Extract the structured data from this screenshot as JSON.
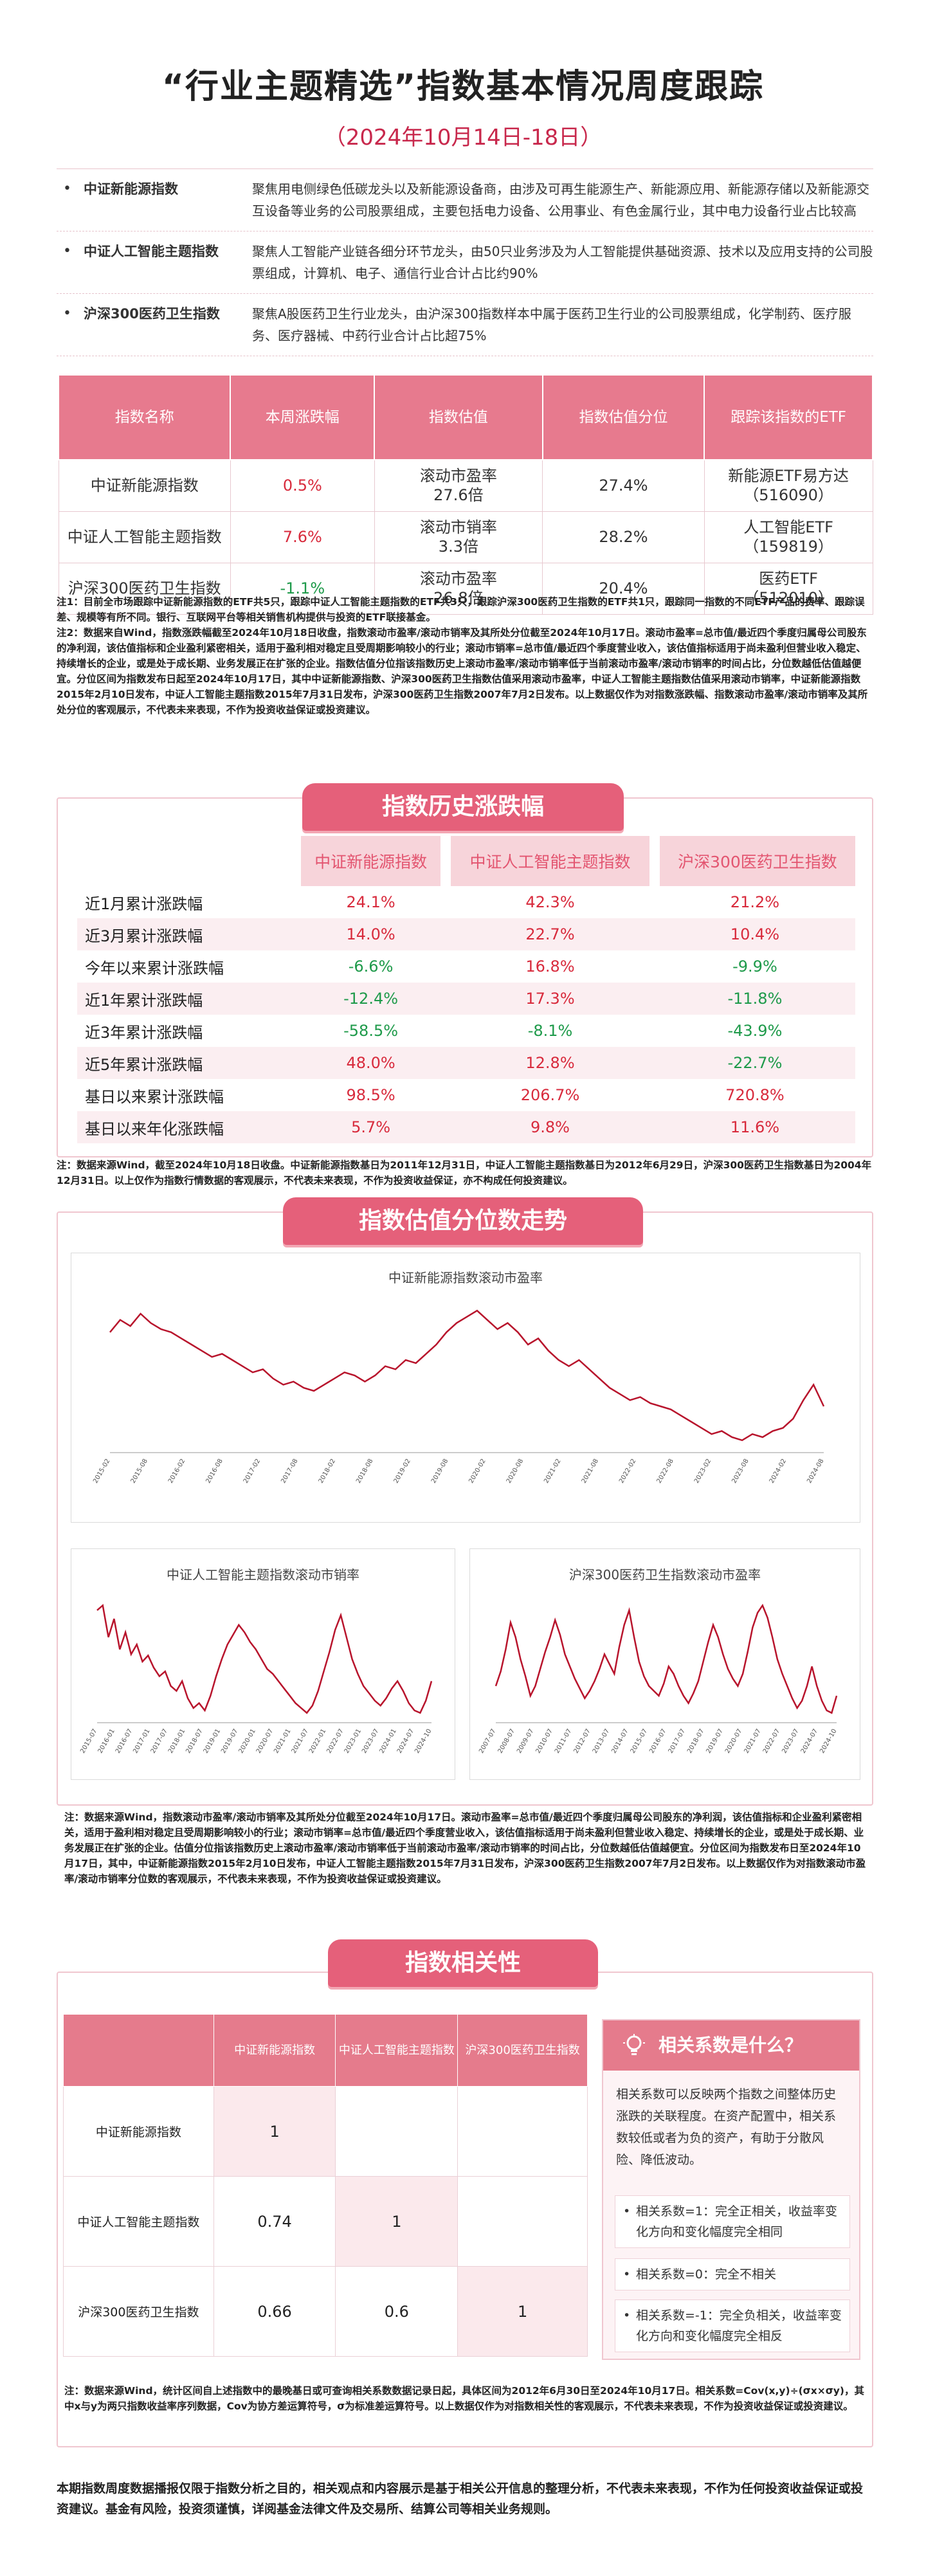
{
  "header": {
    "title": "“行业主题精选”指数基本情况周度跟踪",
    "subtitle": "（2024年10月14日-18日）"
  },
  "intro": [
    {
      "bullet": "•",
      "name": "中证新能源指数",
      "desc": "聚焦用电侧绿色低碳龙头以及新能源设备商，由涉及可再生能源生产、新能源应用、新能源存储以及新能源交互设备等业务的公司股票组成，主要包括电力设备、公用事业、有色金属行业，其中电力设备行业占比较高"
    },
    {
      "bullet": "•",
      "name": "中证人工智能主题指数",
      "desc": "聚焦人工智能产业链各细分环节龙头，由50只业务涉及为人工智能提供基础资源、技术以及应用支持的公司股票组成，计算机、电子、通信行业合计占比约90%"
    },
    {
      "bullet": "•",
      "name": "沪深300医药卫生指数",
      "desc": "聚焦A股医药卫生行业龙头，由沪深300指数样本中属于医药卫生行业的公司股票组成，化学制药、医疗服务、医疗器械、中药行业合计占比超75%"
    }
  ],
  "main_table": {
    "headers": [
      "指数名称",
      "本周涨跌幅",
      "指数估值",
      "指数估值分位",
      "跟踪该指数的ETF"
    ],
    "rows": [
      {
        "name": "中证新能源指数",
        "ret": "0.5%",
        "val1": "滚动市盈率",
        "val2": "27.6倍",
        "pct": "27.4%",
        "etf1": "新能源ETF易方达",
        "etf2": "（516090）",
        "sign": "pos"
      },
      {
        "name": "中证人工智能主题指数",
        "ret": "7.6%",
        "val1": "滚动市销率",
        "val2": "3.3倍",
        "pct": "28.2%",
        "etf1": "人工智能ETF",
        "etf2": "（159819）",
        "sign": "pos"
      },
      {
        "name": "沪深300医药卫生指数",
        "ret": "-1.1%",
        "val1": "滚动市盈率",
        "val2": "26.8倍",
        "pct": "20.4%",
        "etf1": "医药ETF",
        "etf2": "（512010）",
        "sign": "neg"
      }
    ]
  },
  "note1": "注1：目前全市场跟踪中证新能源指数的ETF共5只，跟踪中证人工智能主题指数的ETF共3只，跟踪沪深300医药卫生指数的ETF共1只，跟踪同一指数的不同ETF产品的费率、跟踪误差、规模等有所不同。银行、互联网平台等相关销售机构提供与投资的ETF联接基金。\n注2：数据来自Wind，指数涨跌幅截至2024年10月18日收盘，指数滚动市盈率/滚动市销率及其所处分位截至2024年10月17日。滚动市盈率=总市值/最近四个季度归属母公司股东的净利润，该估值指标和企业盈利紧密相关，适用于盈利相对稳定且受周期影响较小的行业；滚动市销率=总市值/最近四个季度营业收入，该估值指标适用于尚未盈利但营业收入稳定、持续增长的企业，或是处于成长期、业务发展正在扩张的企业。指数估值分位指该指数历史上滚动市盈率/滚动市销率低于当前滚动市盈率/滚动市销率的时间占比，分位数越低估值越便宜。分位区间为指数发布日起至2024年10月17日，其中中证新能源指数、沪深300医药卫生指数估值采用滚动市盈率，中证人工智能主题指数估值采用滚动市销率，中证新能源指数2015年2月10日发布，中证人工智能主题指数2015年7月31日发布，沪深300医药卫生指数2007年7月2日发布。以上数据仅作为对指数涨跌幅、指数滚动市盈率/滚动市销率及其所处分位的客观展示，不代表未来表现，不作为投资收益保证或投资建议。",
  "history": {
    "ribbon": "指数历史涨跌幅",
    "columns": [
      "中证新能源指数",
      "中证人工智能主题指数",
      "沪深300医药卫生指数"
    ],
    "rows": [
      {
        "label": "近1月累计涨跌幅",
        "v": [
          "24.1%",
          "42.3%",
          "21.2%"
        ],
        "s": [
          "pos",
          "pos",
          "pos"
        ]
      },
      {
        "label": "近3月累计涨跌幅",
        "v": [
          "14.0%",
          "22.7%",
          "10.4%"
        ],
        "s": [
          "pos",
          "pos",
          "pos"
        ]
      },
      {
        "label": "今年以来累计涨跌幅",
        "v": [
          "-6.6%",
          "16.8%",
          "-9.9%"
        ],
        "s": [
          "neg",
          "pos",
          "neg"
        ]
      },
      {
        "label": "近1年累计涨跌幅",
        "v": [
          "-12.4%",
          "17.3%",
          "-11.8%"
        ],
        "s": [
          "neg",
          "pos",
          "neg"
        ]
      },
      {
        "label": "近3年累计涨跌幅",
        "v": [
          "-58.5%",
          "-8.1%",
          "-43.9%"
        ],
        "s": [
          "neg",
          "neg",
          "neg"
        ]
      },
      {
        "label": "近5年累计涨跌幅",
        "v": [
          "48.0%",
          "12.8%",
          "-22.7%"
        ],
        "s": [
          "pos",
          "pos",
          "neg"
        ]
      },
      {
        "label": "基日以来累计涨跌幅",
        "v": [
          "98.5%",
          "206.7%",
          "720.8%"
        ],
        "s": [
          "pos",
          "pos",
          "pos"
        ]
      },
      {
        "label": "基日以来年化涨跌幅",
        "v": [
          "5.7%",
          "9.8%",
          "11.6%"
        ],
        "s": [
          "pos",
          "pos",
          "pos"
        ]
      }
    ],
    "note": "注：数据来源Wind，截至2024年10月18日收盘。中证新能源指数基日为2011年12月31日，中证人工智能主题指数基日为2012年6月29日，沪深300医药卫生指数基日为2004年12月31日。以上仅作为指数行情数据的客观展示，不代表未来表现，不作为投资收益保证，亦不构成任何投资建议。"
  },
  "valuation": {
    "ribbon": "指数估值分位数走势",
    "note": "注：数据来源Wind，指数滚动市盈率/滚动市销率及其所处分位截至2024年10月17日。滚动市盈率=总市值/最近四个季度归属母公司股东的净利润，该估值指标和企业盈利紧密相关，适用于盈利相对稳定且受周期影响较小的行业；滚动市销率=总市值/最近四个季度营业收入，该估值指标适用于尚未盈利但营业收入稳定、持续增长的企业，或是处于成长期、业务发展正在扩张的企业。估值分位指该指数历史上滚动市盈率/滚动市销率低于当前滚动市盈率/滚动市销率的时间占比，分位数越低估值越便宜。分位区间为指数发布日至2024年10月17日，其中，中证新能源指数2015年2月10日发布，中证人工智能主题指数2015年7月31日发布，沪深300医药卫生指数2007年7月2日发布。以上数据仅作为对指数滚动市盈率/滚动市销率分位数的客观展示，不代表未来表现，不作为投资收益保证或投资建议。"
  },
  "chart_data": [
    {
      "type": "line",
      "title": "中证新能源指数滚动市盈率",
      "xlabel": "",
      "ylabel": "",
      "x_ticks": [
        "2015-02",
        "2015-08",
        "2016-02",
        "2016-08",
        "2017-02",
        "2017-08",
        "2018-02",
        "2018-08",
        "2019-02",
        "2019-08",
        "2020-02",
        "2020-08",
        "2021-02",
        "2021-08",
        "2022-02",
        "2022-08",
        "2023-02",
        "2023-08",
        "2024-02",
        "2024-08"
      ],
      "grid": false,
      "color": "#b8142c",
      "values": [
        78,
        86,
        82,
        90,
        84,
        80,
        78,
        74,
        70,
        66,
        62,
        64,
        60,
        56,
        52,
        54,
        48,
        44,
        46,
        42,
        40,
        44,
        48,
        52,
        50,
        46,
        50,
        56,
        54,
        60,
        58,
        64,
        70,
        78,
        84,
        88,
        92,
        86,
        80,
        84,
        78,
        70,
        74,
        66,
        60,
        56,
        60,
        54,
        48,
        42,
        38,
        34,
        36,
        32,
        30,
        28,
        24,
        20,
        16,
        12,
        14,
        10,
        8,
        12,
        10,
        14,
        16,
        22,
        34,
        44,
        30
      ]
    },
    {
      "type": "line",
      "title": "中证人工智能主题指数滚动市销率",
      "xlabel": "",
      "ylabel": "",
      "x_ticks": [
        "2015-07",
        "2016-01",
        "2016-07",
        "2017-01",
        "2017-07",
        "2018-01",
        "2018-07",
        "2019-01",
        "2019-07",
        "2020-01",
        "2020-07",
        "2021-01",
        "2021-07",
        "2022-01",
        "2022-07",
        "2023-01",
        "2023-07",
        "2024-01",
        "2024-07",
        "2024-10"
      ],
      "grid": false,
      "color": "#b8142c",
      "values": [
        92,
        96,
        70,
        85,
        60,
        74,
        56,
        64,
        50,
        55,
        45,
        38,
        42,
        30,
        26,
        34,
        20,
        12,
        16,
        10,
        22,
        38,
        52,
        64,
        72,
        80,
        74,
        66,
        60,
        52,
        44,
        40,
        34,
        28,
        22,
        16,
        12,
        8,
        14,
        26,
        42,
        58,
        76,
        88,
        70,
        52,
        40,
        30,
        24,
        18,
        14,
        20,
        28,
        34,
        26,
        16,
        10,
        8,
        18,
        34
      ]
    },
    {
      "type": "line",
      "title": "沪深300医药卫生指数滚动市盈率",
      "xlabel": "",
      "ylabel": "",
      "x_ticks": [
        "2007-07",
        "2008-07",
        "2009-07",
        "2010-07",
        "2011-07",
        "2012-07",
        "2013-07",
        "2014-07",
        "2015-07",
        "2016-07",
        "2017-07",
        "2018-07",
        "2019-07",
        "2020-07",
        "2021-07",
        "2022-07",
        "2023-07",
        "2024-07",
        "2024-10"
      ],
      "grid": false,
      "color": "#b8142c",
      "values": [
        30,
        42,
        60,
        82,
        70,
        52,
        38,
        22,
        30,
        44,
        58,
        70,
        84,
        72,
        56,
        46,
        36,
        28,
        20,
        26,
        34,
        44,
        56,
        48,
        40,
        62,
        80,
        92,
        70,
        50,
        38,
        30,
        26,
        22,
        32,
        46,
        40,
        30,
        22,
        16,
        24,
        34,
        50,
        66,
        80,
        70,
        56,
        44,
        36,
        30,
        40,
        58,
        78,
        90,
        96,
        86,
        70,
        52,
        40,
        30,
        20,
        12,
        18,
        30,
        46,
        30,
        18,
        10,
        8,
        22
      ]
    }
  ],
  "correlation": {
    "ribbon": "指数相关性",
    "columns": [
      "中证新能源指数",
      "中证人工智能主题指数",
      "沪深300医药卫生指数"
    ],
    "rows": [
      {
        "name": "中证新能源指数",
        "v": [
          "1",
          "",
          ""
        ]
      },
      {
        "name": "中证人工智能主题指数",
        "v": [
          "0.74",
          "1",
          ""
        ]
      },
      {
        "name": "沪深300医药卫生指数",
        "v": [
          "0.66",
          "0.6",
          "1"
        ]
      }
    ],
    "info_title": "相关系数是什么？",
    "info_desc": "相关系数可以反映两个指数之间整体历史涨跌的关联程度。在资产配置中，相关系数较低或者为负的资产，有助于分散风险、降低波动。",
    "info_items": [
      "相关系数=1：完全正相关，收益率变化方向和变化幅度完全相同",
      "相关系数=0：完全不相关",
      "相关系数=-1：完全负相关，收益率变化方向和变化幅度完全相反"
    ],
    "note": "注：数据来源Wind，统计区间自上述指数中的最晚基日或可查询相关系数数据记录日起，具体区间为2012年6月30日至2024年10月17日。相关系数=Cov(x,y)÷(σx×σy)，其中x与y为两只指数收益率序列数据，Cov为协方差运算符号，σ为标准差运算符号。以上数据仅作为对指数相关性的客观展示，不代表未来表现，不作为投资收益保证或投资建议。"
  },
  "footer": "本期指数周度数据播报仅限于指数分析之目的，相关观点和内容展示是基于相关公开信息的整理分析，不代表未来表现，不作为任何投资收益保证或投资建议。基金有风险，投资须谨慎，详阅基金法律文件及交易所、结算公司等相关业务规则。"
}
